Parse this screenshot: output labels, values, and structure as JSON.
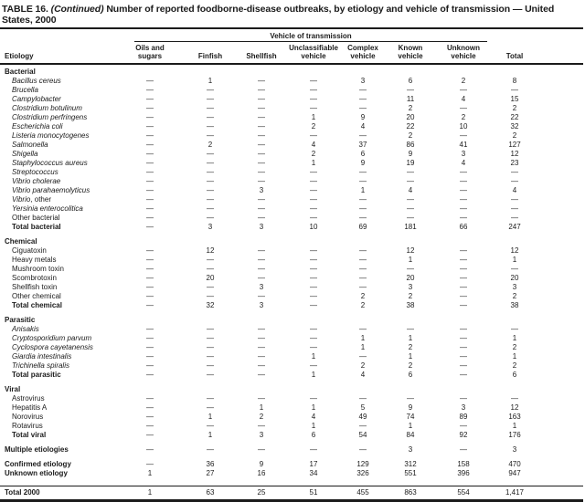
{
  "colors": {
    "ink": "#1b1b1b",
    "background": "#ffffff"
  },
  "page": {
    "title_prefix": "TABLE 16.",
    "title_continued": "(Continued)",
    "title_line1_rest": "Number of reported foodborne-disease outbreaks, by etiology and vehicle of transmission — United",
    "title_line2": "States, 2000"
  },
  "table": {
    "span_header": "Vehicle of transmission",
    "etiology_header": "Etiology",
    "columns": [
      [
        "Oils and",
        "sugars"
      ],
      [
        "Finfish"
      ],
      [
        "Shellfish"
      ],
      [
        "Unclassifiable",
        "vehicle"
      ],
      [
        "Complex",
        "vehicle"
      ],
      [
        "Known",
        "vehicle"
      ],
      [
        "Unknown",
        "vehicle"
      ],
      [
        "Total"
      ]
    ],
    "sections": [
      {
        "header": "Bacterial",
        "rows": [
          {
            "label": "Bacillus cereus",
            "style": "italic",
            "values": [
              "—",
              "1",
              "—",
              "—",
              "3",
              "6",
              "2",
              "8"
            ]
          },
          {
            "label": "Brucella",
            "style": "italic",
            "values": [
              "—",
              "—",
              "—",
              "—",
              "—",
              "—",
              "—",
              "—"
            ]
          },
          {
            "label": "Campylobacter",
            "style": "italic",
            "values": [
              "—",
              "—",
              "—",
              "—",
              "—",
              "11",
              "4",
              "15"
            ]
          },
          {
            "label": "Clostridium botulinum",
            "style": "italic",
            "values": [
              "—",
              "—",
              "—",
              "—",
              "—",
              "2",
              "—",
              "2"
            ]
          },
          {
            "label": "Clostridium perfringens",
            "style": "italic",
            "values": [
              "—",
              "—",
              "—",
              "1",
              "9",
              "20",
              "2",
              "22"
            ]
          },
          {
            "label": "Escherichia coli",
            "style": "italic",
            "values": [
              "—",
              "—",
              "—",
              "2",
              "4",
              "22",
              "10",
              "32"
            ]
          },
          {
            "label": "Listeria monocytogenes",
            "style": "italic",
            "values": [
              "—",
              "—",
              "—",
              "—",
              "—",
              "2",
              "—",
              "2"
            ]
          },
          {
            "label": "Salmonella",
            "style": "italic",
            "values": [
              "—",
              "2",
              "—",
              "4",
              "37",
              "86",
              "41",
              "127"
            ]
          },
          {
            "label": "Shigella",
            "style": "italic",
            "values": [
              "—",
              "—",
              "—",
              "2",
              "6",
              "9",
              "3",
              "12"
            ]
          },
          {
            "label": "Staphylococcus aureus",
            "style": "italic",
            "values": [
              "—",
              "—",
              "—",
              "1",
              "9",
              "19",
              "4",
              "23"
            ]
          },
          {
            "label": "Streptococcus",
            "style": "italic",
            "values": [
              "—",
              "—",
              "—",
              "—",
              "—",
              "—",
              "—",
              "—"
            ]
          },
          {
            "label": "Vibrio cholerae",
            "style": "italic",
            "values": [
              "—",
              "—",
              "—",
              "—",
              "—",
              "—",
              "—",
              "—"
            ]
          },
          {
            "label": "Vibrio parahaemolyticus",
            "style": "italic",
            "values": [
              "—",
              "—",
              "3",
              "—",
              "1",
              "4",
              "—",
              "4"
            ]
          },
          {
            "label": "Vibrio",
            "suffix": ", other",
            "style": "italic",
            "values": [
              "—",
              "—",
              "—",
              "—",
              "—",
              "—",
              "—",
              "—"
            ]
          },
          {
            "label": "Yersinia enterocolitica",
            "style": "italic",
            "values": [
              "—",
              "—",
              "—",
              "—",
              "—",
              "—",
              "—",
              "—"
            ]
          },
          {
            "label": "Other bacterial",
            "style": "plain",
            "values": [
              "—",
              "—",
              "—",
              "—",
              "—",
              "—",
              "—",
              "—"
            ]
          },
          {
            "label": "Total bacterial",
            "style": "total",
            "values": [
              "—",
              "3",
              "3",
              "10",
              "69",
              "181",
              "66",
              "247"
            ]
          }
        ]
      },
      {
        "header": "Chemical",
        "rows": [
          {
            "label": "Ciguatoxin",
            "style": "plain",
            "values": [
              "—",
              "12",
              "—",
              "—",
              "—",
              "12",
              "—",
              "12"
            ]
          },
          {
            "label": "Heavy metals",
            "style": "plain",
            "values": [
              "—",
              "—",
              "—",
              "—",
              "—",
              "1",
              "—",
              "1"
            ]
          },
          {
            "label": "Mushroom toxin",
            "style": "plain",
            "values": [
              "—",
              "—",
              "—",
              "—",
              "—",
              "—",
              "—",
              "—"
            ]
          },
          {
            "label": "Scombrotoxin",
            "style": "plain",
            "values": [
              "—",
              "20",
              "—",
              "—",
              "—",
              "20",
              "—",
              "20"
            ]
          },
          {
            "label": "Shellfish toxin",
            "style": "plain",
            "values": [
              "—",
              "—",
              "3",
              "—",
              "—",
              "3",
              "—",
              "3"
            ]
          },
          {
            "label": "Other chemical",
            "style": "plain",
            "values": [
              "—",
              "—",
              "—",
              "—",
              "2",
              "2",
              "—",
              "2"
            ]
          },
          {
            "label": "Total chemical",
            "style": "total",
            "values": [
              "—",
              "32",
              "3",
              "—",
              "2",
              "38",
              "—",
              "38"
            ]
          }
        ]
      },
      {
        "header": "Parasitic",
        "rows": [
          {
            "label": "Anisakis",
            "style": "italic",
            "values": [
              "—",
              "—",
              "—",
              "—",
              "—",
              "—",
              "—",
              "—"
            ]
          },
          {
            "label": "Cryptosporidium parvum",
            "style": "italic",
            "values": [
              "—",
              "—",
              "—",
              "—",
              "1",
              "1",
              "—",
              "1"
            ]
          },
          {
            "label": "Cyclospora cayetanensis",
            "style": "italic",
            "values": [
              "—",
              "—",
              "—",
              "—",
              "1",
              "2",
              "—",
              "2"
            ]
          },
          {
            "label": "Giardia intestinalis",
            "style": "italic",
            "values": [
              "—",
              "—",
              "—",
              "1",
              "—",
              "1",
              "—",
              "1"
            ]
          },
          {
            "label": "Trichinella spiralis",
            "style": "italic",
            "values": [
              "—",
              "—",
              "—",
              "—",
              "2",
              "2",
              "—",
              "2"
            ]
          },
          {
            "label": "Total parasitic",
            "style": "total",
            "values": [
              "—",
              "—",
              "—",
              "1",
              "4",
              "6",
              "—",
              "6"
            ]
          }
        ]
      },
      {
        "header": "Viral",
        "rows": [
          {
            "label": "Astrovirus",
            "style": "plain",
            "values": [
              "—",
              "—",
              "—",
              "—",
              "—",
              "—",
              "—",
              "—"
            ]
          },
          {
            "label": "Hepatitis A",
            "style": "plain",
            "values": [
              "—",
              "—",
              "1",
              "1",
              "5",
              "9",
              "3",
              "12"
            ]
          },
          {
            "label": "Norovirus",
            "style": "plain",
            "values": [
              "—",
              "1",
              "2",
              "4",
              "49",
              "74",
              "89",
              "163"
            ]
          },
          {
            "label": "Rotavirus",
            "style": "plain",
            "values": [
              "—",
              "—",
              "—",
              "1",
              "—",
              "1",
              "—",
              "1"
            ]
          },
          {
            "label": "Total viral",
            "style": "total",
            "values": [
              "—",
              "1",
              "3",
              "6",
              "54",
              "84",
              "92",
              "176"
            ]
          }
        ]
      }
    ],
    "footer_rows": [
      {
        "label": "Multiple etiologies",
        "style": "footer",
        "gap_before": true,
        "values": [
          "—",
          "—",
          "—",
          "—",
          "—",
          "3",
          "—",
          "3"
        ]
      },
      {
        "label": "Confirmed etiology",
        "style": "footer",
        "gap_before": true,
        "values": [
          "—",
          "36",
          "9",
          "17",
          "129",
          "312",
          "158",
          "470"
        ]
      },
      {
        "label": "Unknown etiology",
        "style": "footer",
        "values": [
          "1",
          "27",
          "16",
          "34",
          "326",
          "551",
          "396",
          "947"
        ]
      },
      {
        "label": "Total 2000",
        "style": "footer",
        "gap_before": true,
        "rule_before": true,
        "values": [
          "1",
          "63",
          "25",
          "51",
          "455",
          "863",
          "554",
          "1,417"
        ]
      }
    ]
  }
}
